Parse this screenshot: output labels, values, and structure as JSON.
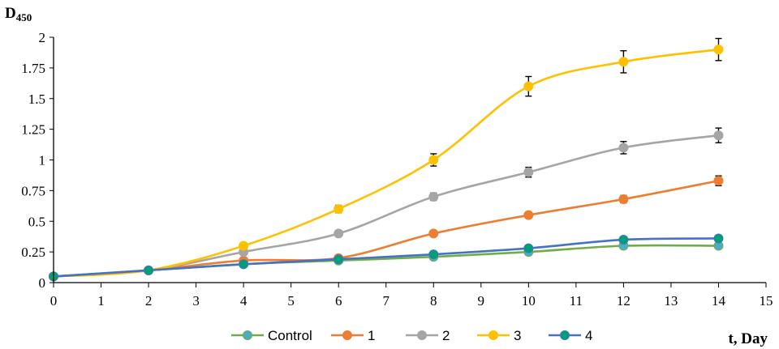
{
  "chart_data": {
    "type": "line",
    "ylabel_main": "D",
    "ylabel_sub": "450",
    "xlabel": "t, Day",
    "xlim": [
      0,
      15
    ],
    "ylim": [
      0,
      2
    ],
    "xticks": [
      0,
      1,
      2,
      3,
      4,
      5,
      6,
      7,
      8,
      9,
      10,
      11,
      12,
      13,
      14,
      15
    ],
    "xtick_labels": [
      "0",
      "1",
      "2",
      "3",
      "4",
      "5",
      "6",
      "7",
      "8",
      "9",
      "10",
      "11",
      "12",
      "13",
      "14",
      "15"
    ],
    "yticks": [
      0,
      0.25,
      0.5,
      0.75,
      1,
      1.25,
      1.5,
      1.75,
      2
    ],
    "ytick_labels": [
      "0",
      "0.25",
      "0.5",
      "0.75",
      "1",
      "1.25",
      "1.5",
      "1.75",
      "2"
    ],
    "grid": false,
    "legend_position": "bottom",
    "x": [
      0,
      2,
      4,
      6,
      8,
      10,
      12,
      14
    ],
    "series": [
      {
        "name": "Control",
        "color": "#70AD47",
        "marker_color": "#4BACC6",
        "marker": "circle",
        "values": [
          0.05,
          0.1,
          0.15,
          0.18,
          0.21,
          0.25,
          0.3,
          0.3
        ],
        "errors": []
      },
      {
        "name": "1",
        "color": "#ED7D31",
        "marker_color": "#ED7D31",
        "marker": "circle",
        "values": [
          0.05,
          0.1,
          0.18,
          0.2,
          0.4,
          0.55,
          0.68,
          0.83
        ],
        "errors": [
          0,
          0,
          0,
          0,
          0,
          0.02,
          0.03,
          0.04
        ]
      },
      {
        "name": "2",
        "color": "#A5A5A5",
        "marker_color": "#A5A5A5",
        "marker": "circle",
        "values": [
          0.05,
          0.1,
          0.25,
          0.4,
          0.7,
          0.9,
          1.1,
          1.2
        ],
        "errors": [
          0,
          0,
          0,
          0,
          0.03,
          0.04,
          0.05,
          0.06
        ]
      },
      {
        "name": "3",
        "color": "#FFC000",
        "marker_color": "#FFC000",
        "marker": "circle",
        "values": [
          0.05,
          0.1,
          0.3,
          0.6,
          1.0,
          1.6,
          1.8,
          1.9
        ],
        "errors": [
          0,
          0,
          0,
          0.03,
          0.05,
          0.08,
          0.09,
          0.09
        ]
      },
      {
        "name": "4",
        "color": "#4472C4",
        "marker_color": "#00A077",
        "marker": "circle",
        "values": [
          0.05,
          0.1,
          0.15,
          0.19,
          0.23,
          0.28,
          0.35,
          0.36
        ],
        "errors": []
      }
    ]
  }
}
